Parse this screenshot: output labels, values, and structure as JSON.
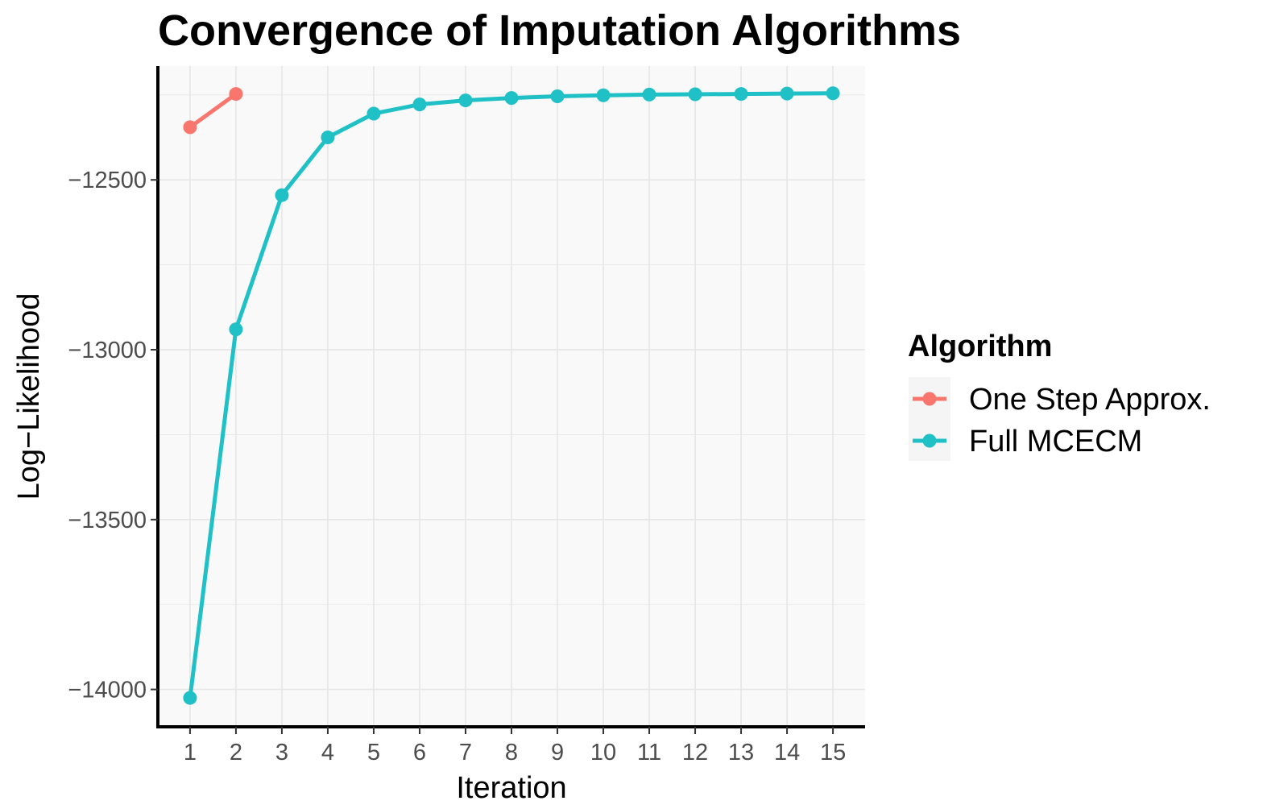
{
  "chart_data": {
    "type": "line",
    "title": "Convergence of Imputation Algorithms",
    "xlabel": "Iteration",
    "ylabel": "Log−Likelihood",
    "x": [
      1,
      2,
      3,
      4,
      5,
      6,
      7,
      8,
      9,
      10,
      11,
      12,
      13,
      14,
      15
    ],
    "x_tick_labels": [
      "1",
      "2",
      "3",
      "4",
      "5",
      "6",
      "7",
      "8",
      "9",
      "10",
      "11",
      "12",
      "13",
      "14",
      "15"
    ],
    "y_ticks": [
      -14000,
      -13500,
      -13000,
      -12500
    ],
    "y_tick_labels": [
      "−14000",
      "−13500",
      "−13000",
      "−12500"
    ],
    "xlim": [
      0.3,
      15.7
    ],
    "ylim": [
      -14110,
      -12165
    ],
    "grid": true,
    "legend_title": "Algorithm",
    "legend_position": "right",
    "series": [
      {
        "name": "One Step Approx.",
        "color": "#F8766D",
        "x": [
          1,
          2
        ],
        "values": [
          -12345,
          -12247
        ]
      },
      {
        "name": "Full MCECM",
        "color": "#00BFC4",
        "x": [
          1,
          2,
          3,
          4,
          5,
          6,
          7,
          8,
          9,
          10,
          11,
          12,
          13,
          14,
          15
        ],
        "values": [
          -14025,
          -12940,
          -12545,
          -12375,
          -12305,
          -12278,
          -12266,
          -12259,
          -12254,
          -12251,
          -12249,
          -12248,
          -12247,
          -12246,
          -12245
        ]
      }
    ],
    "colors": {
      "panel_background": "#F9F9F9",
      "grid": "#E6E6E6",
      "axis_line": "#000000",
      "tick_text": "#4D4D4D",
      "full_mcecm_line": "#1FC0C6"
    }
  }
}
